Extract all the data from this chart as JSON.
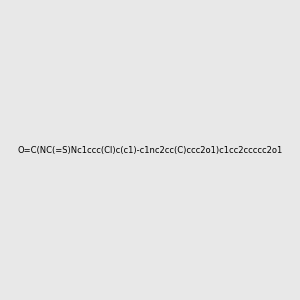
{
  "smiles": "O=C(NC(=S)Nc1ccc(Cl)c(c1)-c1nc2cc(C)ccc2o1)c1cc2ccccc2o1",
  "image_size": 300,
  "background_color": "#e8e8e8",
  "title": "",
  "dpi": 100
}
